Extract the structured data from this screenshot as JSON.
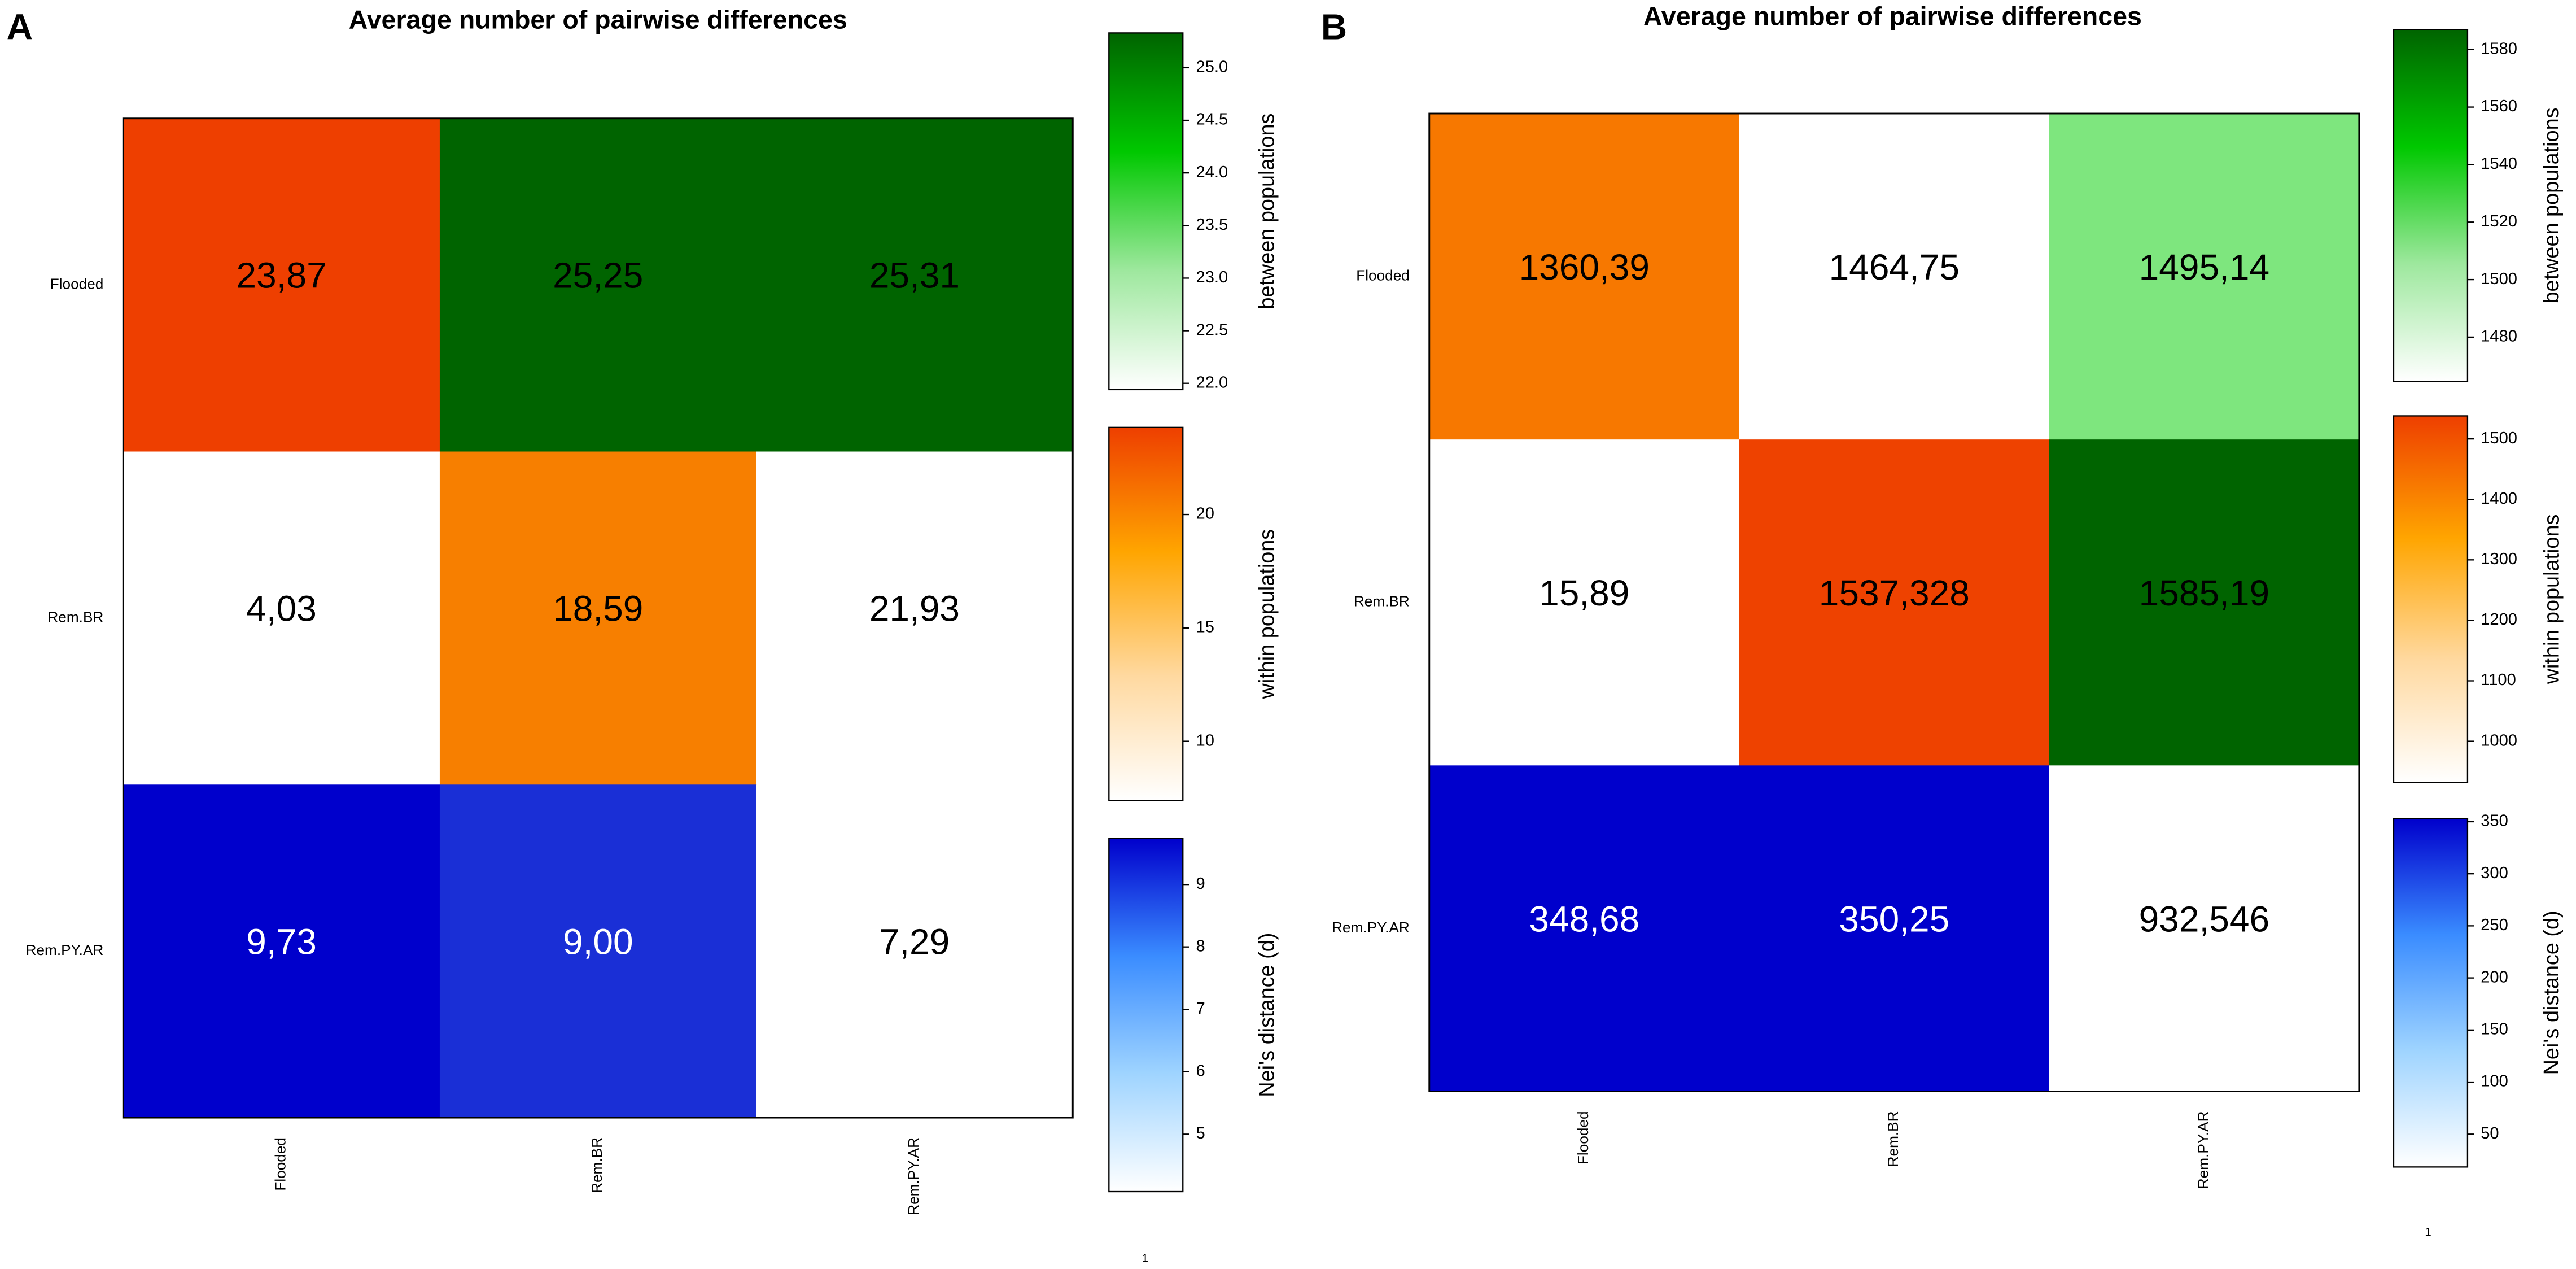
{
  "chart_data": [
    {
      "type": "heatmap",
      "panel_label": "A",
      "title": "Average number of pairwise differences",
      "rows": [
        "Flooded",
        "Rem.BR",
        "Rem.PY.AR"
      ],
      "columns": [
        "Flooded",
        "Rem.BR",
        "Rem.PY.AR"
      ],
      "values": [
        [
          23.87,
          25.25,
          25.31
        ],
        [
          4.03,
          18.59,
          21.93
        ],
        [
          9.73,
          9.0,
          7.29
        ]
      ],
      "value_labels": [
        [
          "23,87",
          "25,25",
          "25,31"
        ],
        [
          "4,03",
          "18,59",
          "21,93"
        ],
        [
          "9,73",
          "9,00",
          "7,29"
        ]
      ],
      "cell_colors": [
        [
          "#ee3f00",
          "#006400",
          "#006400"
        ],
        [
          "#ffffff",
          "#f77f00",
          "#ffffff"
        ],
        [
          "#0000cc",
          "#1a2fd6",
          "#ffffff"
        ]
      ],
      "text_colors": [
        [
          "#000000",
          "#000000",
          "#000000"
        ],
        [
          "#000000",
          "#000000",
          "#000000"
        ],
        [
          "#ffffff",
          "#ffffff",
          "#000000"
        ]
      ],
      "colorbars": [
        {
          "label": "between populations",
          "lim": [
            21.94,
            25.33
          ],
          "colors": [
            "#ffffff",
            "#9ee89e",
            "#00c800",
            "#006400"
          ],
          "ticks": [
            {
              "value": 22,
              "label": "22.0"
            },
            22.5,
            {
              "value": 23,
              "label": "23.0"
            },
            23.5,
            {
              "value": 24,
              "label": "24.0"
            },
            24.5,
            {
              "value": 25,
              "label": "25.0"
            }
          ]
        },
        {
          "label": "within populations",
          "lim": [
            7.39,
            23.84
          ],
          "colors": [
            "#ffffff",
            "#ffd9a0",
            "#ffa500",
            "#ee3f00"
          ],
          "ticks": [
            10,
            15,
            20
          ]
        },
        {
          "label": "Nei's distance (d)",
          "lim": [
            4.08,
            9.74
          ],
          "colors": [
            "#ffffff",
            "#9fd4ff",
            "#3a8cff",
            "#0000cc"
          ],
          "ticks": [
            5,
            6,
            7,
            8,
            9
          ]
        }
      ],
      "footnote": "1"
    },
    {
      "type": "heatmap",
      "panel_label": "B",
      "title": "Average number of pairwise differences",
      "rows": [
        "Flooded",
        "Rem.BR",
        "Rem.PY.AR"
      ],
      "columns": [
        "Flooded",
        "Rem.BR",
        "Rem.PY.AR"
      ],
      "values": [
        [
          1360.39,
          1464.75,
          1495.14
        ],
        [
          15.89,
          1537.328,
          1585.19
        ],
        [
          348.68,
          350.25,
          932.546
        ]
      ],
      "value_labels": [
        [
          "1360,39",
          "1464,75",
          "1495,14"
        ],
        [
          "15,89",
          "1537,328",
          "1585,19"
        ],
        [
          "348,68",
          "350,25",
          "932,546"
        ]
      ],
      "cell_colors": [
        [
          "#f77800",
          "#ffffff",
          "#7ee67e"
        ],
        [
          "#ffffff",
          "#ee4200",
          "#006400"
        ],
        [
          "#0000cc",
          "#0000cc",
          "#ffffff"
        ]
      ],
      "text_colors": [
        [
          "#000000",
          "#000000",
          "#000000"
        ],
        [
          "#000000",
          "#000000",
          "#000000"
        ],
        [
          "#ffffff",
          "#ffffff",
          "#000000"
        ]
      ],
      "colorbars": [
        {
          "label": "between populations",
          "lim": [
            1464.6,
            1586.9
          ],
          "colors": [
            "#ffffff",
            "#9ee89e",
            "#00c800",
            "#006400"
          ],
          "ticks": [
            1480,
            1500,
            1520,
            1540,
            1560,
            1580
          ]
        },
        {
          "label": "within populations",
          "lim": [
            932,
            1538
          ],
          "colors": [
            "#ffffff",
            "#ffd9a0",
            "#ffa500",
            "#ee3f00"
          ],
          "ticks": [
            1000,
            1100,
            1200,
            1300,
            1400,
            1500
          ]
        },
        {
          "label": "Nei's distance (d)",
          "lim": [
            18.5,
            353
          ],
          "colors": [
            "#ffffff",
            "#9fd4ff",
            "#3a8cff",
            "#0000cc"
          ],
          "ticks": [
            50,
            100,
            150,
            200,
            250,
            300,
            350
          ]
        }
      ],
      "footnote": "1"
    }
  ]
}
